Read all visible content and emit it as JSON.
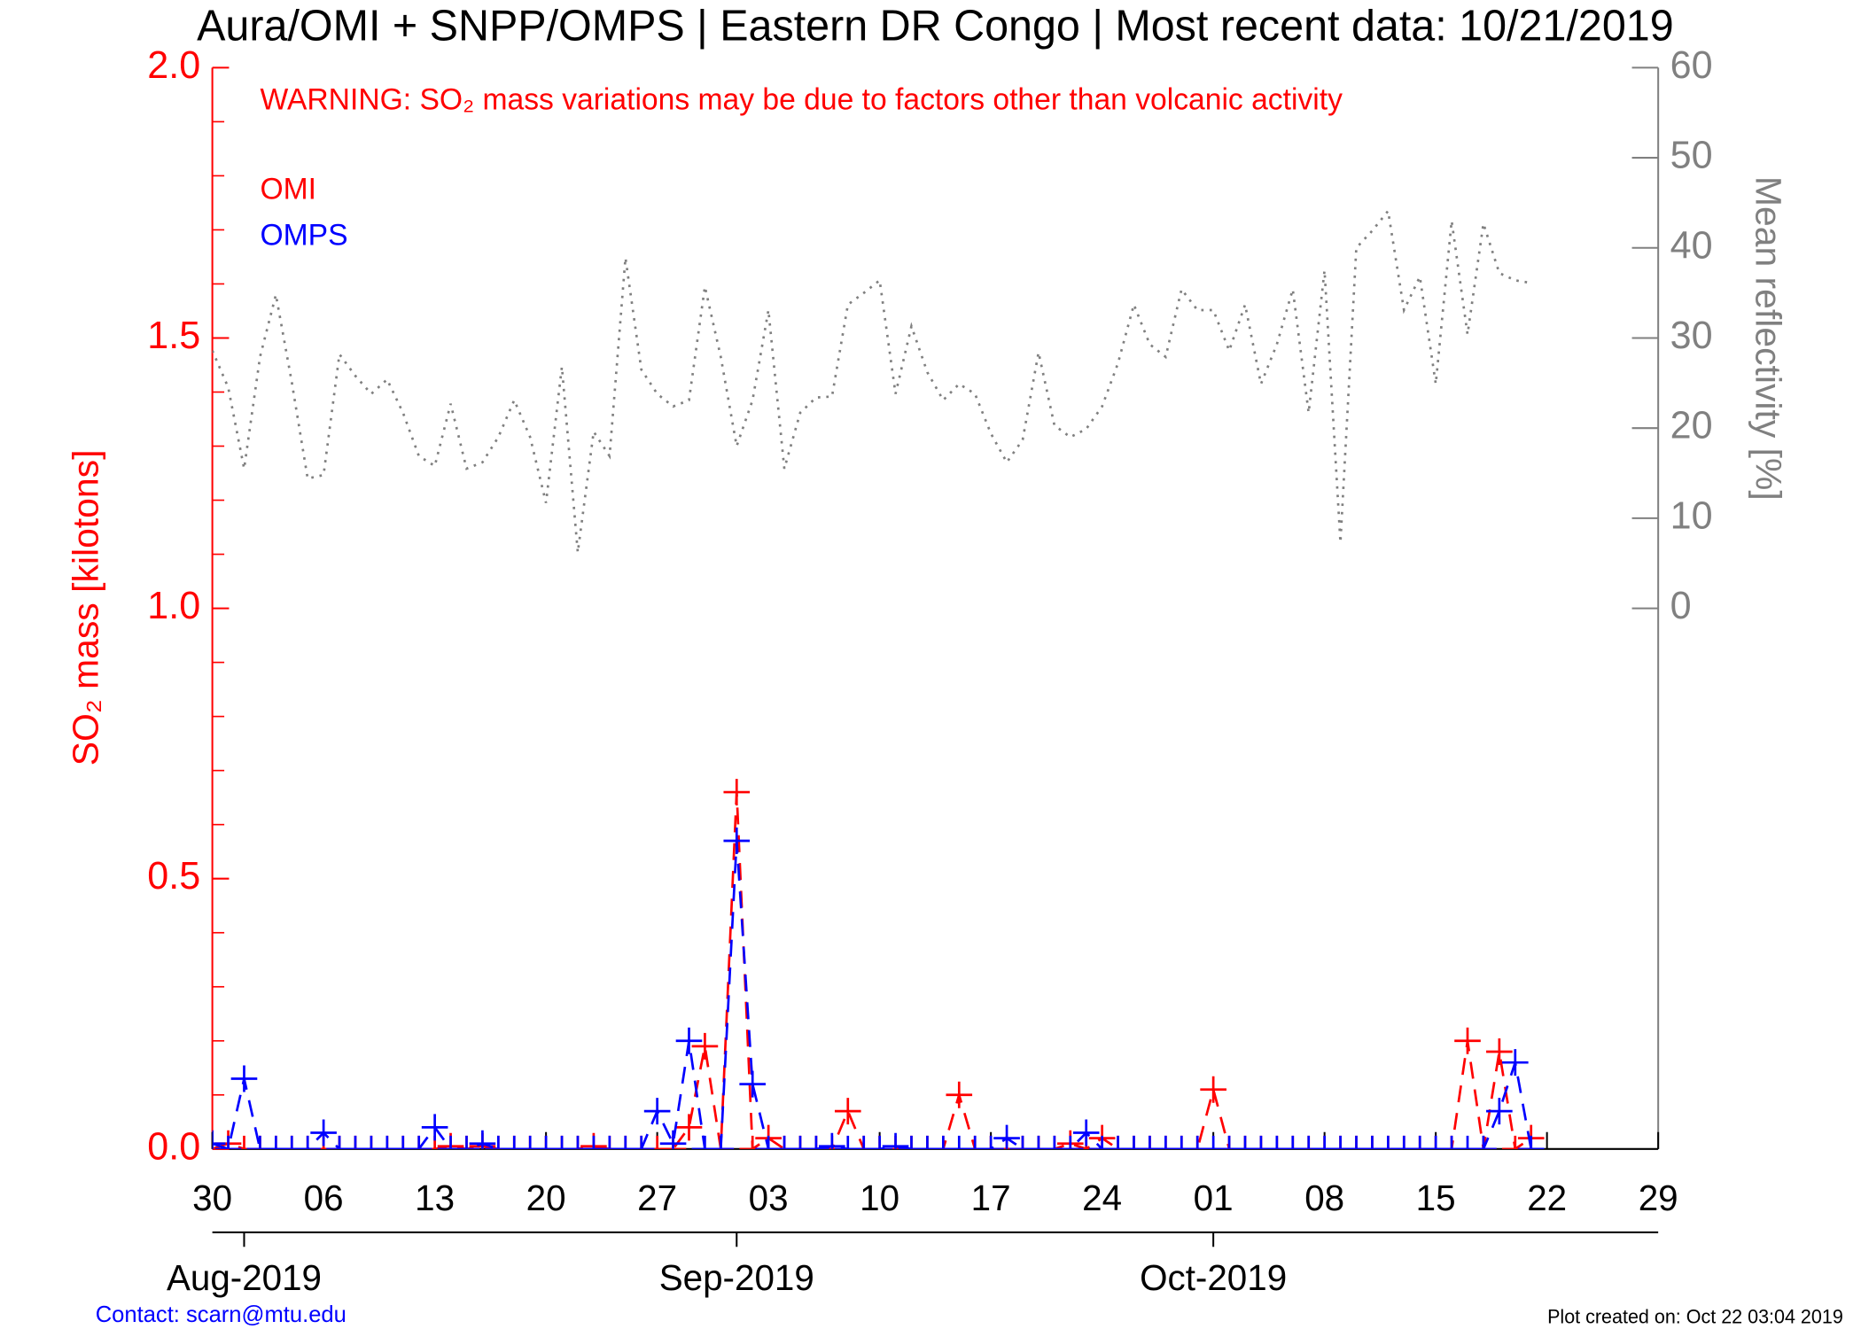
{
  "chart_data": {
    "type": "line",
    "title": "Aura/OMI + SNPP/OMPS | Eastern DR Congo | Most recent data: 10/21/2019",
    "annotation": "WARNING: SO₂ mass variations may be due to factors other than volcanic activity",
    "ylabel": "SO₂ mass [kilotons]",
    "y2label": "Mean reflectivity [%]",
    "footer_left": "Contact: scarn@mtu.edu",
    "footer_right": "Plot created on: Oct 22 03:04 2019",
    "xlim": [
      "2019-07-30",
      "2019-10-29"
    ],
    "xticks": [
      {
        "value": "2019-07-30",
        "label": "30"
      },
      {
        "value": "2019-08-06",
        "label": "06"
      },
      {
        "value": "2019-08-13",
        "label": "13"
      },
      {
        "value": "2019-08-20",
        "label": "20"
      },
      {
        "value": "2019-08-27",
        "label": "27"
      },
      {
        "value": "2019-09-03",
        "label": "03"
      },
      {
        "value": "2019-09-10",
        "label": "10"
      },
      {
        "value": "2019-09-17",
        "label": "17"
      },
      {
        "value": "2019-09-24",
        "label": "24"
      },
      {
        "value": "2019-10-01",
        "label": "01"
      },
      {
        "value": "2019-10-08",
        "label": "08"
      },
      {
        "value": "2019-10-15",
        "label": "15"
      },
      {
        "value": "2019-10-22",
        "label": "22"
      },
      {
        "value": "2019-10-29",
        "label": "29"
      }
    ],
    "month_ticks": [
      {
        "value": "2019-08-01",
        "label": "Aug-2019"
      },
      {
        "value": "2019-09-01",
        "label": "Sep-2019"
      },
      {
        "value": "2019-10-01",
        "label": "Oct-2019"
      }
    ],
    "ylim": [
      0,
      2
    ],
    "yticks": [
      {
        "value": 0,
        "label": "0.0"
      },
      0.5,
      {
        "value": 1,
        "label": "1.0"
      },
      1.5,
      {
        "value": 2,
        "label": "2.0"
      }
    ],
    "yminor_ticks": [
      0.1,
      0.2,
      0.3,
      0.4,
      0.6,
      0.7,
      0.8,
      0.9,
      1.1,
      1.2,
      1.3,
      1.4,
      1.6,
      1.7,
      1.8,
      1.9
    ],
    "y2lim": [
      -60,
      60
    ],
    "y2ticks": [
      0,
      10,
      20,
      30,
      40,
      50,
      60
    ],
    "x": [
      "2019-07-30",
      "2019-07-31",
      "2019-08-01",
      "2019-08-02",
      "2019-08-03",
      "2019-08-04",
      "2019-08-05",
      "2019-08-06",
      "2019-08-07",
      "2019-08-08",
      "2019-08-09",
      "2019-08-10",
      "2019-08-11",
      "2019-08-12",
      "2019-08-13",
      "2019-08-14",
      "2019-08-15",
      "2019-08-16",
      "2019-08-17",
      "2019-08-18",
      "2019-08-19",
      "2019-08-20",
      "2019-08-21",
      "2019-08-22",
      "2019-08-23",
      "2019-08-24",
      "2019-08-25",
      "2019-08-26",
      "2019-08-27",
      "2019-08-28",
      "2019-08-29",
      "2019-08-30",
      "2019-08-31",
      "2019-09-01",
      "2019-09-02",
      "2019-09-03",
      "2019-09-04",
      "2019-09-05",
      "2019-09-06",
      "2019-09-07",
      "2019-09-08",
      "2019-09-09",
      "2019-09-10",
      "2019-09-11",
      "2019-09-12",
      "2019-09-13",
      "2019-09-14",
      "2019-09-15",
      "2019-09-16",
      "2019-09-17",
      "2019-09-18",
      "2019-09-19",
      "2019-09-20",
      "2019-09-21",
      "2019-09-22",
      "2019-09-23",
      "2019-09-24",
      "2019-09-25",
      "2019-09-26",
      "2019-09-27",
      "2019-09-28",
      "2019-09-29",
      "2019-09-30",
      "2019-10-01",
      "2019-10-02",
      "2019-10-03",
      "2019-10-04",
      "2019-10-05",
      "2019-10-06",
      "2019-10-07",
      "2019-10-08",
      "2019-10-09",
      "2019-10-10",
      "2019-10-11",
      "2019-10-12",
      "2019-10-13",
      "2019-10-14",
      "2019-10-15",
      "2019-10-16",
      "2019-10-17",
      "2019-10-18",
      "2019-10-19",
      "2019-10-20",
      "2019-10-21"
    ],
    "series": [
      {
        "name": "OMI",
        "color": "#ff0000",
        "linestyle": "dashed",
        "marker": "+",
        "values": [
          0,
          0.01,
          0,
          0,
          0,
          0,
          0,
          0,
          0,
          0,
          0,
          0,
          0,
          0,
          0,
          0.005,
          0,
          0.005,
          0,
          0,
          0,
          0,
          0,
          0,
          0.005,
          0,
          0,
          0,
          0,
          0,
          0.04,
          0.19,
          0,
          0.66,
          0,
          0.02,
          0,
          0,
          0,
          0,
          0.07,
          0,
          0,
          0,
          0,
          0,
          0,
          0.1,
          0,
          0,
          0,
          0,
          0,
          0,
          0.01,
          0,
          0.02,
          0,
          0,
          0,
          0,
          0,
          0,
          0.11,
          0,
          0,
          0,
          0,
          0,
          0,
          0,
          0,
          0,
          0,
          0,
          0,
          0,
          0,
          0,
          0.2,
          0,
          0.18,
          0,
          0.02
        ]
      },
      {
        "name": "OMPS",
        "color": "#0000ff",
        "linestyle": "dashed",
        "marker": "+",
        "values": [
          0.01,
          0,
          0.13,
          0,
          0,
          0,
          0,
          0.03,
          0,
          0,
          0,
          0,
          0,
          0,
          0.04,
          0,
          0,
          0.01,
          0,
          0,
          0,
          0,
          0,
          0,
          0,
          0,
          0,
          0,
          0.07,
          0.01,
          0.2,
          0,
          0,
          0.57,
          0.12,
          0,
          0,
          0,
          0,
          0.005,
          0,
          0,
          0,
          0.005,
          0,
          0,
          0,
          0,
          0,
          0,
          0.02,
          0,
          0,
          0,
          0,
          0.03,
          0,
          0,
          0,
          0,
          0,
          0,
          0,
          0,
          0,
          0,
          0,
          0,
          0,
          0,
          0,
          0,
          0,
          0,
          0,
          0,
          0,
          0,
          0,
          0,
          0,
          0.07,
          0.16,
          0
        ]
      },
      {
        "color": "#808080",
        "linestyle": "dotted",
        "axis": "y2",
        "values": [
          28.6,
          24.5,
          15.5,
          27.9,
          34.8,
          25.1,
          14.4,
          14.8,
          28.2,
          25.8,
          23.8,
          25.4,
          21.7,
          16.9,
          15.8,
          22.7,
          15.5,
          16.2,
          19,
          23.1,
          19,
          11.7,
          26.8,
          6.2,
          19.6,
          16.9,
          38.9,
          26.5,
          23.8,
          22.4,
          23.1,
          35.7,
          27.9,
          18,
          23.1,
          33.1,
          15.5,
          21.7,
          23.4,
          23.5,
          33.7,
          35,
          36.4,
          23.8,
          31.3,
          26.2,
          23.1,
          24.9,
          23.8,
          19.4,
          16.2,
          18.7,
          28.4,
          20.3,
          19,
          19.9,
          22.4,
          27.2,
          33.7,
          29.3,
          27.9,
          35.4,
          33.1,
          33.1,
          28.6,
          33.7,
          24.9,
          29.3,
          35.4,
          21.7,
          37.5,
          7.3,
          40,
          41.9,
          44.1,
          33.1,
          36.8,
          24.9,
          43,
          30.4,
          42.7,
          37.2,
          36.4,
          36.1
        ]
      }
    ]
  }
}
